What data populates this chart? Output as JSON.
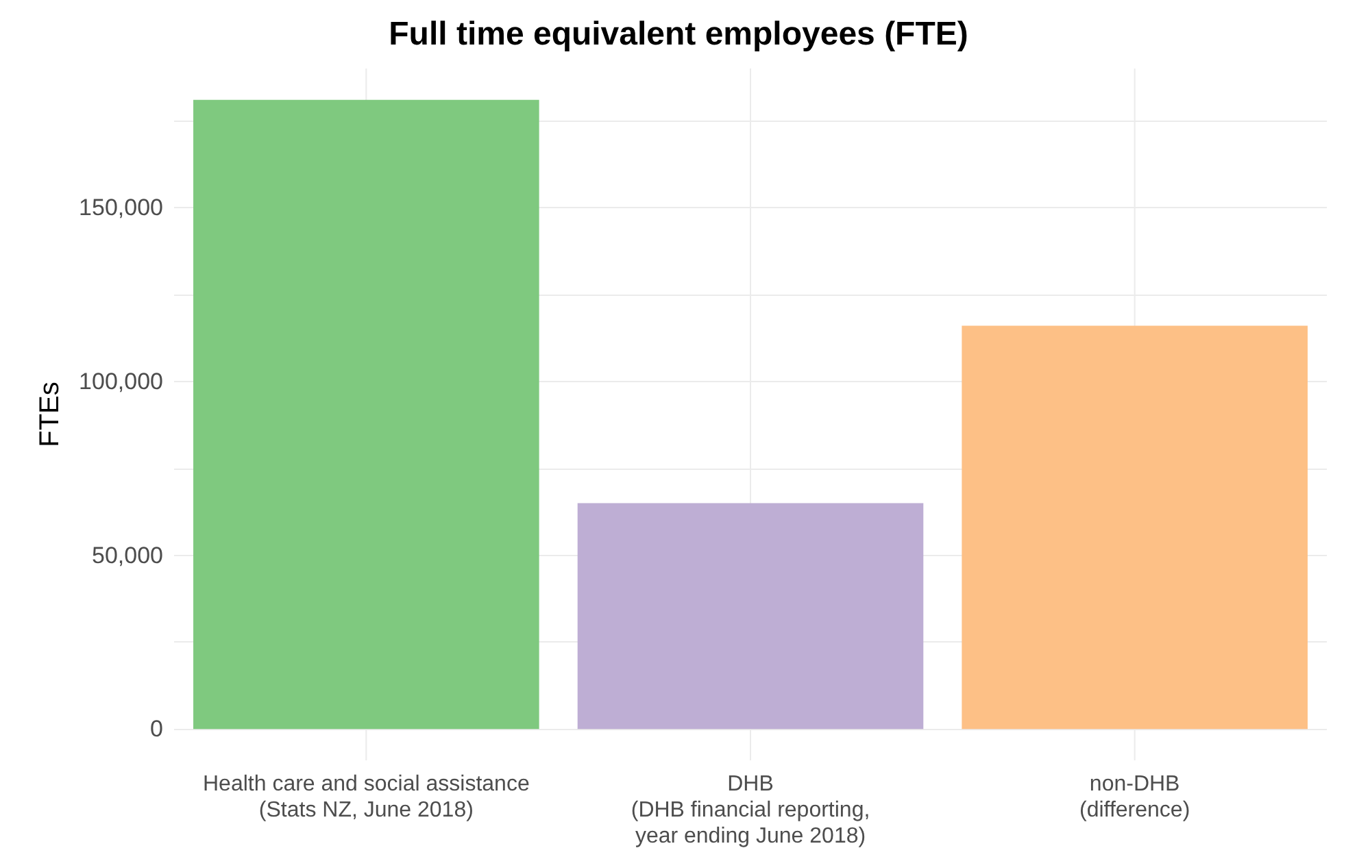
{
  "chart_data": {
    "type": "bar",
    "title": "Full time equivalent employees (FTE)",
    "ylabel": "FTEs",
    "categories": [
      "Health care and social assistance\n(Stats NZ, June 2018)",
      "DHB\n(DHB financial reporting,\nyear ending June 2018)",
      "non-DHB\n(difference)"
    ],
    "values": [
      181000,
      65000,
      116000
    ],
    "colors": [
      "#7fc97f",
      "#beaed4",
      "#fdc086"
    ],
    "ylim": [
      -9000,
      190000
    ],
    "yticks": [
      0,
      {
        "value": 25000,
        "label": null
      },
      {
        "value": 50000,
        "label": "50,000"
      },
      {
        "value": 75000,
        "label": null
      },
      {
        "value": 100000,
        "label": "100,000"
      },
      {
        "value": 125000,
        "label": null
      },
      {
        "value": 150000,
        "label": "150,000"
      },
      {
        "value": 175000,
        "label": null
      }
    ],
    "grid": true
  }
}
